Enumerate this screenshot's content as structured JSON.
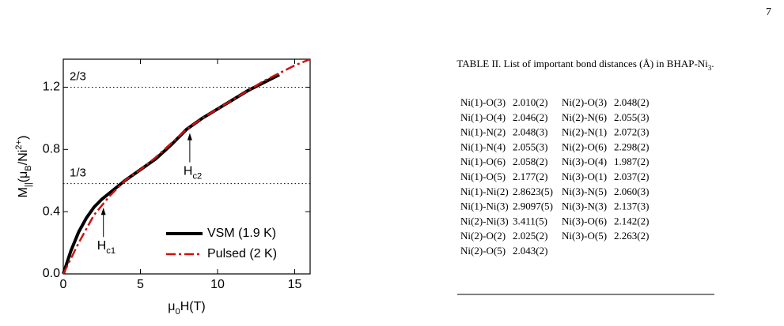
{
  "page_number": "7",
  "chart_data": {
    "type": "line",
    "xlabel": [
      {
        "text": "μ"
      },
      {
        "text": "0",
        "shift": "sub"
      },
      {
        "text": "H(T)"
      }
    ],
    "ylabel": [
      {
        "text": "M"
      },
      {
        "text": "||",
        "shift": "sub"
      },
      {
        "text": "(μ"
      },
      {
        "text": "B",
        "shift": "sub"
      },
      {
        "text": "/Ni"
      },
      {
        "text": "2+",
        "shift": "sup"
      },
      {
        "text": ")"
      }
    ],
    "xlim": [
      0,
      16
    ],
    "ylim": [
      0,
      1.38
    ],
    "xticks": [
      0,
      5,
      10,
      15
    ],
    "yticks": [
      {
        "value": 0,
        "label": "0.0"
      },
      {
        "value": 0.4,
        "label": "0.4"
      },
      {
        "value": 0.8,
        "label": "0.8"
      },
      {
        "value": 1.2,
        "label": "1.2"
      }
    ],
    "reference_lines": [
      {
        "value": 1.2,
        "label": "2/3"
      },
      {
        "value": 0.58,
        "label": "1/3"
      }
    ],
    "annotations": [
      {
        "text": "H",
        "sub": "c1",
        "x": 2.6,
        "y": 0.43
      },
      {
        "text": "H",
        "sub": "c2",
        "x": 8.2,
        "y": 0.91
      }
    ],
    "legend": "lower right",
    "series": [
      {
        "name": "VSM (1.9 K)",
        "color": "#000000",
        "style": "solid",
        "x": [
          0,
          0.5,
          1,
          1.5,
          2,
          2.5,
          3,
          4,
          5,
          6,
          7,
          8,
          9,
          10,
          11,
          12,
          13,
          14
        ],
        "values": [
          0,
          0.15,
          0.27,
          0.36,
          0.43,
          0.48,
          0.52,
          0.6,
          0.67,
          0.74,
          0.83,
          0.93,
          1.0,
          1.06,
          1.12,
          1.18,
          1.23,
          1.28
        ]
      },
      {
        "name": "Pulsed (2 K)",
        "color": "#cc1111",
        "style": "dashdot",
        "x": [
          0,
          0.5,
          1,
          2,
          3,
          4,
          5,
          6,
          7,
          8,
          9,
          10,
          11,
          12,
          13,
          14,
          15,
          16
        ],
        "values": [
          0,
          0.1,
          0.2,
          0.38,
          0.5,
          0.6,
          0.67,
          0.75,
          0.84,
          0.93,
          1.0,
          1.06,
          1.12,
          1.18,
          1.24,
          1.29,
          1.34,
          1.38
        ]
      }
    ]
  },
  "table": {
    "caption": [
      {
        "text": "TABLE II. List of important bond distances (Å) in BHAP-Ni"
      },
      {
        "text": "3",
        "shift": "sub"
      },
      {
        "text": "."
      }
    ],
    "rows": [
      [
        "Ni(1)-O(3)",
        "2.010(2)",
        "Ni(2)-O(3)",
        "2.048(2)"
      ],
      [
        "Ni(1)-O(4)",
        "2.046(2)",
        "Ni(2)-N(6)",
        "2.055(3)"
      ],
      [
        "Ni(1)-N(2)",
        "2.048(3)",
        "Ni(2)-N(1)",
        "2.072(3)"
      ],
      [
        "Ni(1)-N(4)",
        "2.055(3)",
        "Ni(2)-O(6)",
        "2.298(2)"
      ],
      [
        "Ni(1)-O(6)",
        "2.058(2)",
        "Ni(3)-O(4)",
        "1.987(2)"
      ],
      [
        "Ni(1)-O(5)",
        "2.177(2)",
        "Ni(3)-O(1)",
        "2.037(2)"
      ],
      [
        "Ni(1)-Ni(2)",
        "2.8623(5)",
        "Ni(3)-N(5)",
        "2.060(3)"
      ],
      [
        "Ni(1)-Ni(3)",
        "2.9097(5)",
        "Ni(3)-N(3)",
        "2.137(3)"
      ],
      [
        "Ni(2)-Ni(3)",
        "3.411(5)",
        "Ni(3)-O(6)",
        "2.142(2)"
      ],
      [
        "Ni(2)-O(2)",
        "2.025(2)",
        "Ni(3)-O(5)",
        "2.263(2)"
      ],
      [
        "Ni(2)-O(5)",
        "2.043(2)"
      ]
    ]
  }
}
